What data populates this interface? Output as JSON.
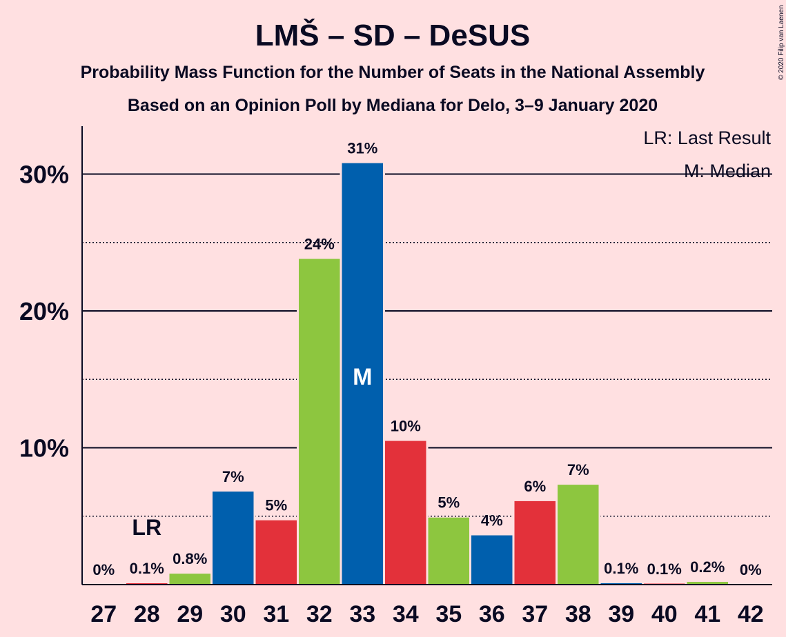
{
  "title": "LMŠ – SD – DeSUS",
  "subtitle1": "Probability Mass Function for the Number of Seats in the National Assembly",
  "subtitle2": "Based on an Opinion Poll by Mediana for Delo, 3–9 January 2020",
  "legend": {
    "last_result": "LR: Last Result",
    "median": "M: Median"
  },
  "copyright": "© 2020 Filip van Laenen",
  "markers": {
    "last_result_label": "LR",
    "median_label": "M"
  },
  "colors": {
    "background": "#ffe0e1",
    "lms": "#005fad",
    "sd": "#e3313a",
    "desus": "#8dc63f"
  },
  "chart_data": {
    "type": "bar",
    "categories": [
      "27",
      "28",
      "29",
      "30",
      "31",
      "32",
      "33",
      "34",
      "35",
      "36",
      "37",
      "38",
      "39",
      "40",
      "41",
      "42"
    ],
    "values": [
      0,
      0.1,
      0.8,
      6.8,
      4.7,
      23.8,
      30.8,
      10.5,
      4.9,
      3.6,
      6.1,
      7.3,
      0.1,
      0.05,
      0.2,
      0
    ],
    "value_labels": [
      "0%",
      "0.1%",
      "0.8%",
      "7%",
      "5%",
      "24%",
      "31%",
      "10%",
      "5%",
      "4%",
      "6%",
      "7%",
      "0.1%",
      "0.1%",
      "0.2%",
      "0%"
    ],
    "bar_colors": [
      "lms",
      "sd",
      "desus",
      "lms",
      "sd",
      "desus",
      "lms",
      "sd",
      "desus",
      "lms",
      "sd",
      "desus",
      "lms",
      "sd",
      "desus",
      "lms"
    ],
    "yticks": [
      10,
      20,
      30
    ],
    "ytick_labels": [
      "10%",
      "20%",
      "30%"
    ],
    "minor_gridlines": [
      5,
      15,
      25
    ],
    "ylim": [
      0,
      33.5
    ],
    "last_result_category": "28",
    "median_category": "33",
    "xlabel": "",
    "ylabel": ""
  }
}
